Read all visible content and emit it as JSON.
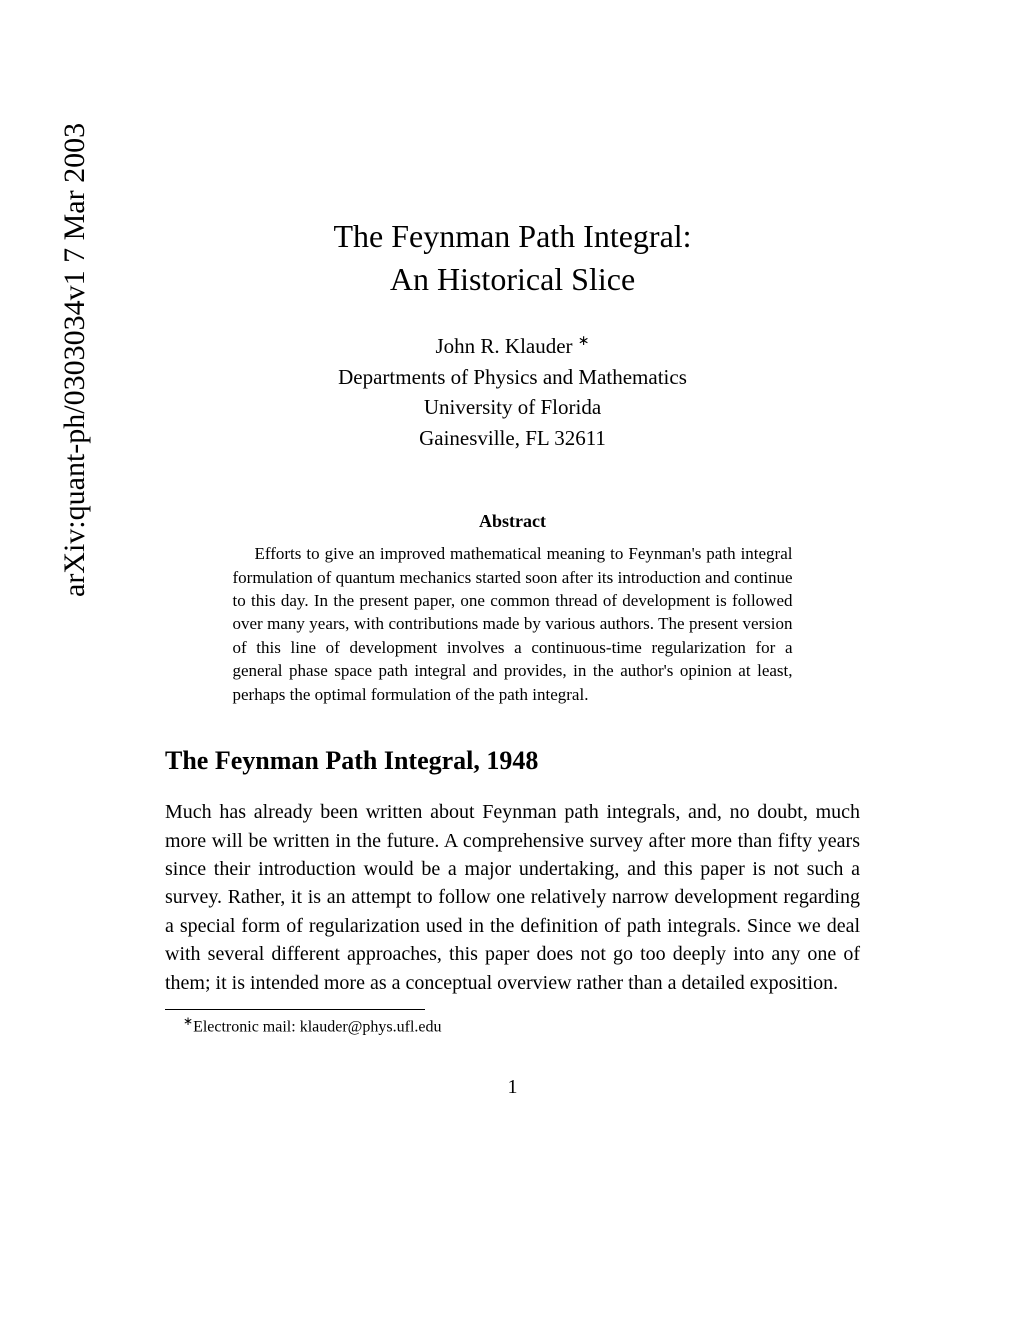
{
  "arxiv_label": "arXiv:quant-ph/0303034v1  7 Mar 2003",
  "title_line1": "The Feynman Path Integral:",
  "title_line2": "An Historical Slice",
  "author_name": "John R. Klauder ",
  "author_affiliation_line1": "Departments of Physics and Mathematics",
  "author_affiliation_line2": "University of Florida",
  "author_affiliation_line3": "Gainesville, FL 32611",
  "abstract_heading": "Abstract",
  "abstract_body": "Efforts to give an improved mathematical meaning to Feynman's path integral formulation of quantum mechanics started soon after its introduction and continue to this day. In the present paper, one common thread of development is followed over many years, with contributions made by various authors. The present version of this line of development involves a continuous-time regularization for a general phase space path integral and provides, in the author's opinion at least, perhaps the optimal formulation of the path integral.",
  "section_heading": "The Feynman Path Integral, 1948",
  "body_paragraph": "Much has already been written about Feynman path integrals, and, no doubt, much more will be written in the future.  A comprehensive survey after more than fifty years since their introduction would be a major undertaking, and this paper is not such a survey.  Rather, it is an attempt to follow one relatively narrow development regarding a special form of regularization used in the definition of path integrals. Since we deal with several different approaches, this paper does not go too deeply into any one of them; it is intended more as a conceptual overview rather than a detailed exposition.",
  "footnote_marker": "∗",
  "footnote_text": "Electronic mail: klauder@phys.ufl.edu",
  "page_number": "1"
}
